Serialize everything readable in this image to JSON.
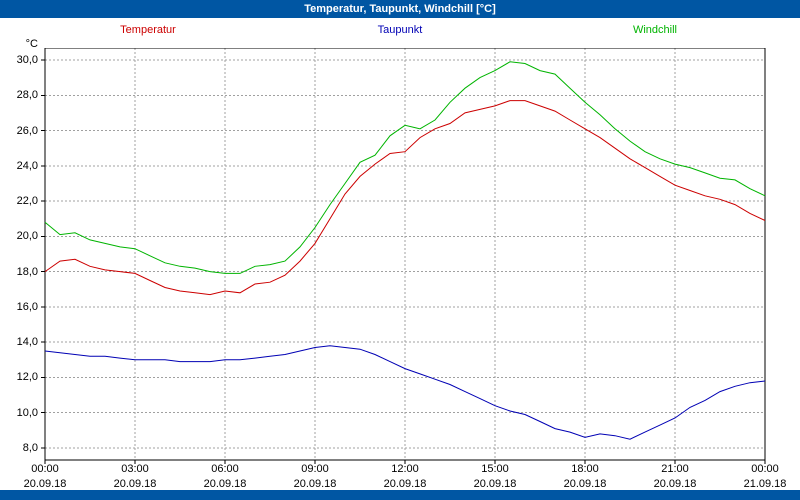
{
  "window": {
    "title": "Temperatur, Taupunkt, Windchill [°C]",
    "titlebar_color": "#0056a3"
  },
  "legend": [
    {
      "label": "Temperatur",
      "color": "#cc0000"
    },
    {
      "label": "Taupunkt",
      "color": "#0000b4"
    },
    {
      "label": "Windchill",
      "color": "#00b400"
    }
  ],
  "chart_data": {
    "type": "line",
    "title": "Temperatur, Taupunkt, Windchill [°C]",
    "ylabel": "°C",
    "xlabel": "",
    "grid": true,
    "legend_position": "top",
    "xlim": [
      0,
      24
    ],
    "ylim": [
      8,
      30
    ],
    "y_tick_values": [
      30,
      28,
      26,
      24,
      22,
      20,
      18,
      16,
      14,
      12,
      10,
      8
    ],
    "y_tick_labels": [
      "30,0",
      "28,0",
      "26,0",
      "24,0",
      "22,0",
      "20,0",
      "18,0",
      "16,0",
      "14,0",
      "12,0",
      "10,0",
      "8,0"
    ],
    "x_tick_hours": [
      0,
      3,
      6,
      9,
      12,
      15,
      18,
      21,
      24
    ],
    "x_tick_times": [
      "00:00",
      "03:00",
      "06:00",
      "09:00",
      "12:00",
      "15:00",
      "18:00",
      "21:00",
      "00:00"
    ],
    "x_tick_dates": [
      "20.09.18",
      "20.09.18",
      "20.09.18",
      "20.09.18",
      "20.09.18",
      "20.09.18",
      "20.09.18",
      "20.09.18",
      "21.09.18"
    ],
    "x": [
      0,
      0.5,
      1,
      1.5,
      2,
      2.5,
      3,
      3.5,
      4,
      4.5,
      5,
      5.5,
      6,
      6.5,
      7,
      7.5,
      8,
      8.5,
      9,
      9.5,
      10,
      10.5,
      11,
      11.5,
      12,
      12.5,
      13,
      13.5,
      14,
      14.5,
      15,
      15.5,
      16,
      16.5,
      17,
      17.5,
      18,
      18.5,
      19,
      19.5,
      20,
      20.5,
      21,
      21.5,
      22,
      22.5,
      23,
      23.5,
      24
    ],
    "series": [
      {
        "name": "Temperatur",
        "color": "#cc0000",
        "values": [
          18.0,
          18.6,
          18.7,
          18.3,
          18.1,
          18.0,
          17.9,
          17.5,
          17.1,
          16.9,
          16.8,
          16.7,
          16.9,
          16.8,
          17.3,
          17.4,
          17.8,
          18.6,
          19.6,
          21.0,
          22.4,
          23.4,
          24.1,
          24.7,
          24.8,
          25.6,
          26.1,
          26.4,
          27.0,
          27.2,
          27.4,
          27.7,
          27.7,
          27.4,
          27.1,
          26.6,
          26.1,
          25.6,
          25.0,
          24.4,
          23.9,
          23.4,
          22.9,
          22.6,
          22.3,
          22.1,
          21.8,
          21.3,
          20.9
        ]
      },
      {
        "name": "Taupunkt",
        "color": "#0000b4",
        "values": [
          13.5,
          13.4,
          13.3,
          13.2,
          13.2,
          13.1,
          13.0,
          13.0,
          13.0,
          12.9,
          12.9,
          12.9,
          13.0,
          13.0,
          13.1,
          13.2,
          13.3,
          13.5,
          13.7,
          13.8,
          13.7,
          13.6,
          13.3,
          12.9,
          12.5,
          12.2,
          11.9,
          11.6,
          11.2,
          10.8,
          10.4,
          10.1,
          9.9,
          9.5,
          9.1,
          8.9,
          8.6,
          8.8,
          8.7,
          8.5,
          8.9,
          9.3,
          9.7,
          10.3,
          10.7,
          11.2,
          11.5,
          11.7,
          11.8
        ]
      },
      {
        "name": "Windchill",
        "color": "#00b400",
        "values": [
          20.8,
          20.1,
          20.2,
          19.8,
          19.6,
          19.4,
          19.3,
          18.9,
          18.5,
          18.3,
          18.2,
          18.0,
          17.9,
          17.9,
          18.3,
          18.4,
          18.6,
          19.4,
          20.5,
          21.8,
          23.0,
          24.2,
          24.6,
          25.7,
          26.3,
          26.1,
          26.6,
          27.6,
          28.4,
          29.0,
          29.4,
          29.9,
          29.8,
          29.4,
          29.2,
          28.4,
          27.6,
          26.9,
          26.1,
          25.4,
          24.8,
          24.4,
          24.1,
          23.9,
          23.6,
          23.3,
          23.2,
          22.7,
          22.3
        ]
      }
    ]
  }
}
